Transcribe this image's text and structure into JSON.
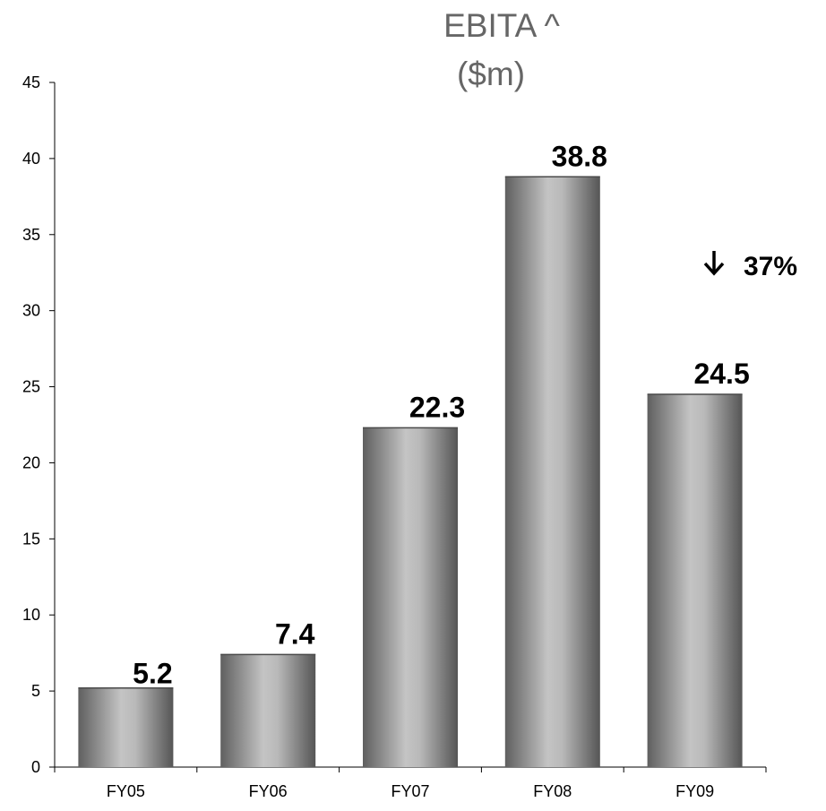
{
  "chart_data": {
    "type": "bar",
    "title": [
      "EBITA ^",
      "($m)"
    ],
    "categories": [
      "FY05",
      "FY06",
      "FY07",
      "FY08",
      "FY09"
    ],
    "values": [
      5.2,
      7.4,
      22.3,
      38.8,
      24.5
    ],
    "data_labels": [
      "5.2",
      "7.4",
      "22.3",
      "38.8",
      "24.5"
    ],
    "ylim": [
      0,
      45
    ],
    "yticks": [
      0,
      5,
      10,
      15,
      20,
      25,
      30,
      35,
      40,
      45
    ],
    "grid": false,
    "bar_color": "#8a8a8a",
    "annotation": {
      "icon": "down-arrow-icon",
      "text": "37%"
    }
  }
}
